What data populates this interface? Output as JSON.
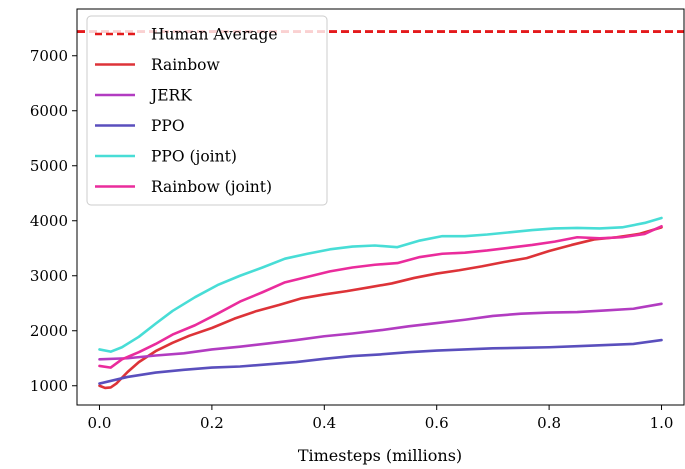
{
  "chart_data": {
    "type": "line",
    "title": "",
    "xlabel": "Timesteps (millions)",
    "ylabel": "",
    "xlim": [
      -0.04,
      1.04
    ],
    "ylim": [
      650,
      7850
    ],
    "xticks": [
      0.0,
      0.2,
      0.4,
      0.6,
      0.8,
      1.0
    ],
    "xtick_labels": [
      "0.0",
      "0.2",
      "0.4",
      "0.6",
      "0.8",
      "1.0"
    ],
    "yticks": [
      1000,
      2000,
      3000,
      4000,
      5000,
      6000,
      7000
    ],
    "ytick_labels": [
      "1000",
      "2000",
      "3000",
      "4000",
      "5000",
      "6000",
      "7000"
    ],
    "grid": false,
    "legend_position": "top-left",
    "reference_lines": [
      {
        "name": "Human Average",
        "y": 7440,
        "color": "#e41a1c",
        "style": "dashed"
      }
    ],
    "series": [
      {
        "name": "Rainbow",
        "color": "#dd3338",
        "x": [
          0.0,
          0.01,
          0.02,
          0.03,
          0.05,
          0.07,
          0.1,
          0.13,
          0.16,
          0.2,
          0.24,
          0.28,
          0.32,
          0.36,
          0.4,
          0.44,
          0.48,
          0.52,
          0.56,
          0.6,
          0.64,
          0.68,
          0.72,
          0.76,
          0.8,
          0.84,
          0.88,
          0.92,
          0.96,
          1.0
        ],
        "y": [
          1000,
          960,
          970,
          1040,
          1250,
          1430,
          1630,
          1780,
          1910,
          2050,
          2220,
          2360,
          2470,
          2590,
          2660,
          2720,
          2790,
          2860,
          2960,
          3040,
          3100,
          3170,
          3250,
          3320,
          3450,
          3560,
          3660,
          3700,
          3760,
          3880
        ]
      },
      {
        "name": "JERK",
        "color": "#b23cc1",
        "x": [
          0.0,
          0.05,
          0.1,
          0.15,
          0.2,
          0.25,
          0.3,
          0.35,
          0.4,
          0.45,
          0.5,
          0.55,
          0.6,
          0.65,
          0.7,
          0.75,
          0.8,
          0.85,
          0.9,
          0.95,
          1.0
        ],
        "y": [
          1480,
          1500,
          1550,
          1590,
          1660,
          1710,
          1770,
          1830,
          1900,
          1950,
          2010,
          2080,
          2140,
          2200,
          2270,
          2310,
          2330,
          2340,
          2370,
          2400,
          2490
        ]
      },
      {
        "name": "PPO",
        "color": "#5a4fbd",
        "x": [
          0.0,
          0.05,
          0.1,
          0.15,
          0.2,
          0.25,
          0.3,
          0.35,
          0.4,
          0.45,
          0.5,
          0.55,
          0.6,
          0.65,
          0.7,
          0.75,
          0.8,
          0.85,
          0.9,
          0.95,
          1.0
        ],
        "y": [
          1040,
          1160,
          1240,
          1290,
          1330,
          1350,
          1390,
          1430,
          1490,
          1540,
          1570,
          1610,
          1640,
          1660,
          1680,
          1690,
          1700,
          1720,
          1740,
          1760,
          1830
        ]
      },
      {
        "name": "PPO (joint)",
        "color": "#48ddd6",
        "x": [
          0.0,
          0.02,
          0.04,
          0.07,
          0.1,
          0.13,
          0.17,
          0.21,
          0.25,
          0.29,
          0.33,
          0.37,
          0.41,
          0.45,
          0.49,
          0.53,
          0.57,
          0.61,
          0.65,
          0.69,
          0.73,
          0.77,
          0.81,
          0.85,
          0.89,
          0.93,
          0.97,
          1.0
        ],
        "y": [
          1660,
          1620,
          1700,
          1890,
          2130,
          2360,
          2610,
          2830,
          3000,
          3150,
          3310,
          3400,
          3480,
          3530,
          3550,
          3520,
          3640,
          3720,
          3720,
          3750,
          3790,
          3830,
          3860,
          3870,
          3860,
          3880,
          3960,
          4050
        ]
      },
      {
        "name": "Rainbow (joint)",
        "color": "#ea2c9c",
        "x": [
          0.0,
          0.02,
          0.04,
          0.07,
          0.1,
          0.13,
          0.17,
          0.21,
          0.25,
          0.29,
          0.33,
          0.37,
          0.41,
          0.45,
          0.49,
          0.53,
          0.57,
          0.61,
          0.65,
          0.69,
          0.73,
          0.77,
          0.81,
          0.85,
          0.89,
          0.93,
          0.97,
          1.0
        ],
        "y": [
          1360,
          1330,
          1480,
          1610,
          1760,
          1930,
          2100,
          2310,
          2530,
          2700,
          2880,
          2980,
          3080,
          3150,
          3200,
          3230,
          3340,
          3400,
          3420,
          3460,
          3510,
          3560,
          3620,
          3700,
          3680,
          3700,
          3760,
          3900
        ]
      }
    ]
  }
}
